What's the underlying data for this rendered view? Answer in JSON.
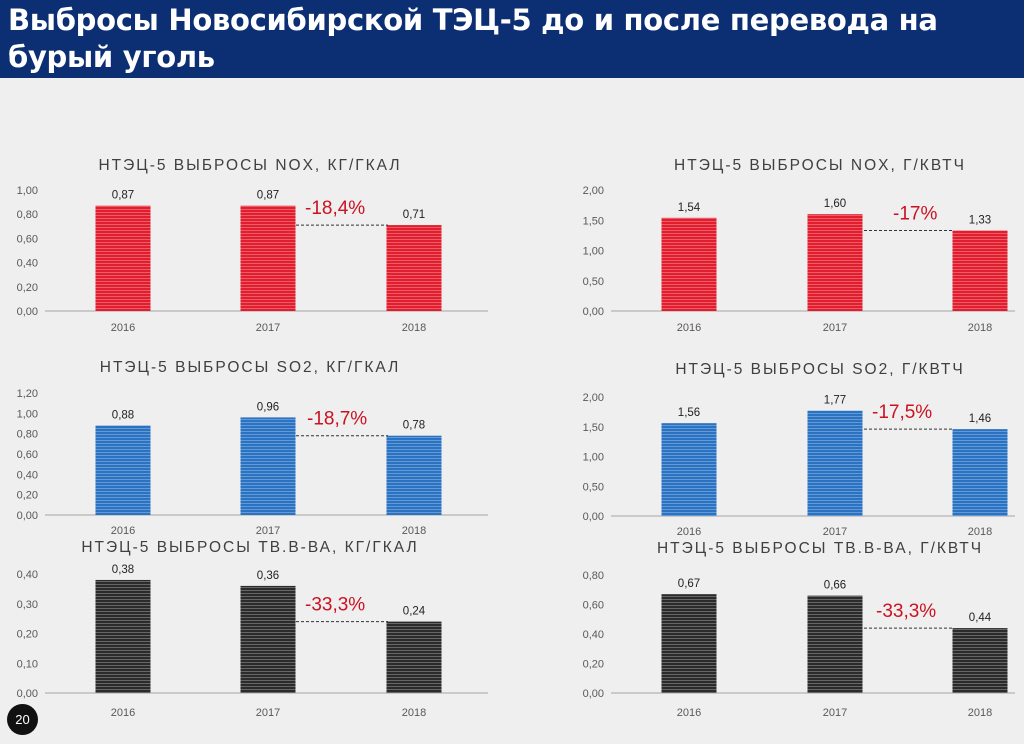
{
  "page": {
    "title": "Выбросы Новосибирской ТЭЦ-5 до и после перевода на бурый уголь",
    "page_number": "20"
  },
  "colors": {
    "header_bg": "#0c2f74",
    "red": "#e11d2e",
    "blue": "#2a72c2",
    "dark": "#2b2b2b",
    "change_text": "#cc1122"
  },
  "chart_data": [
    {
      "type": "bar",
      "title": "НТЭЦ-5 ВЫБРОСЫ NOX, КГ/ГКАЛ",
      "categories": [
        "2016",
        "2017",
        "2018"
      ],
      "values": [
        0.87,
        0.87,
        0.71
      ],
      "value_labels": [
        "0,87",
        "0,87",
        "0,71"
      ],
      "ylim": [
        0,
        1.0
      ],
      "yticks": [
        "0,00",
        "0,20",
        "0,40",
        "0,60",
        "0,80",
        "1,00"
      ],
      "color": "red",
      "change_label": "-18,4%"
    },
    {
      "type": "bar",
      "title": "НТЭЦ-5 ВЫБРОСЫ NOX, Г/КВТЧ",
      "categories": [
        "2016",
        "2017",
        "2018"
      ],
      "values": [
        1.54,
        1.6,
        1.33
      ],
      "value_labels": [
        "1,54",
        "1,60",
        "1,33"
      ],
      "ylim": [
        0,
        2.0
      ],
      "yticks": [
        "0,00",
        "0,50",
        "1,00",
        "1,50",
        "2,00"
      ],
      "color": "red",
      "change_label": "-17%"
    },
    {
      "type": "bar",
      "title": "НТЭЦ-5 ВЫБРОСЫ SO2, КГ/ГКАЛ",
      "categories": [
        "2016",
        "2017",
        "2018"
      ],
      "values": [
        0.88,
        0.96,
        0.78
      ],
      "value_labels": [
        "0,88",
        "0,96",
        "0,78"
      ],
      "ylim": [
        0,
        1.2
      ],
      "yticks": [
        "0,00",
        "0,20",
        "0,40",
        "0,60",
        "0,80",
        "1,00",
        "1,20"
      ],
      "color": "blue",
      "change_label": "-18,7%"
    },
    {
      "type": "bar",
      "title": "НТЭЦ-5 ВЫБРОСЫ SO2, Г/КВТЧ",
      "categories": [
        "2016",
        "2017",
        "2018"
      ],
      "values": [
        1.56,
        1.77,
        1.46
      ],
      "value_labels": [
        "1,56",
        "1,77",
        "1,46"
      ],
      "ylim": [
        0,
        2.0
      ],
      "yticks": [
        "0,00",
        "0,50",
        "1,00",
        "1,50",
        "2,00"
      ],
      "color": "blue",
      "change_label": "-17,5%"
    },
    {
      "type": "bar",
      "title": "НТЭЦ-5 ВЫБРОСЫ ТВ.В-ВА, КГ/ГКАЛ",
      "categories": [
        "2016",
        "2017",
        "2018"
      ],
      "values": [
        0.38,
        0.36,
        0.24
      ],
      "value_labels": [
        "0,38",
        "0,36",
        "0,24"
      ],
      "ylim": [
        0,
        0.4
      ],
      "yticks": [
        "0,00",
        "0,10",
        "0,20",
        "0,30",
        "0,40"
      ],
      "color": "dark",
      "change_label": "-33,3%"
    },
    {
      "type": "bar",
      "title": "НТЭЦ-5 ВЫБРОСЫ ТВ.В-ВА, Г/КВТЧ",
      "categories": [
        "2016",
        "2017",
        "2018"
      ],
      "values": [
        0.67,
        0.66,
        0.44
      ],
      "value_labels": [
        "0,67",
        "0,66",
        "0,44"
      ],
      "ylim": [
        0,
        0.8
      ],
      "yticks": [
        "0,00",
        "0,20",
        "0,40",
        "0,60",
        "0,80"
      ],
      "color": "dark",
      "change_label": "-33,3%"
    }
  ]
}
